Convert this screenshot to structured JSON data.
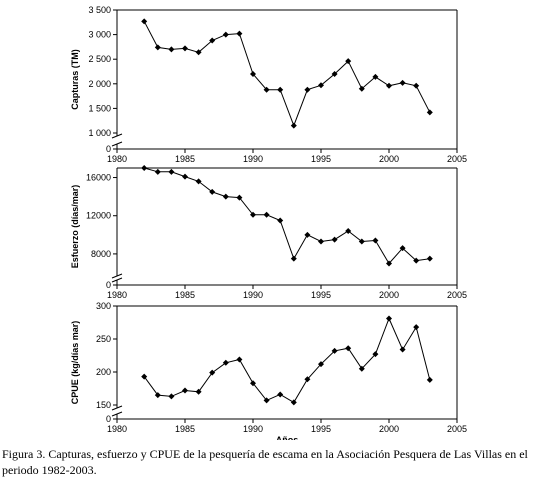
{
  "caption": "Figura 3. Capturas, esfuerzo y CPUE de la pesquería de escama en la Asociación Pesquera de Las Villas en el periodo 1982-2003.",
  "chart_data": [
    {
      "type": "line",
      "ylabel": "Capturas (TM)",
      "xlabel": "",
      "xlim": [
        1980,
        2005
      ],
      "xticks": [
        1980,
        1985,
        1990,
        1995,
        2000,
        2005
      ],
      "ylim": [
        1000,
        3500
      ],
      "yticks": [
        1000,
        1500,
        2000,
        2500,
        3000,
        3500
      ],
      "ytick_labels": [
        "1 000",
        "1 500",
        "2 000",
        "2 500",
        "3 000",
        "3 500"
      ],
      "axis_break": true,
      "zero_label": "0",
      "x": [
        1982,
        1983,
        1984,
        1985,
        1986,
        1987,
        1988,
        1989,
        1990,
        1991,
        1992,
        1993,
        1994,
        1995,
        1996,
        1997,
        1998,
        1999,
        2000,
        2001,
        2002,
        2003
      ],
      "values": [
        3270,
        2740,
        2700,
        2720,
        2640,
        2880,
        3000,
        3020,
        2200,
        1880,
        1880,
        1150,
        1880,
        1970,
        2200,
        2460,
        1900,
        2140,
        1960,
        2020,
        1960,
        1420
      ]
    },
    {
      "type": "line",
      "ylabel": "Esfuerzo (días/mar)",
      "xlabel": "",
      "xlim": [
        1980,
        2005
      ],
      "xticks": [
        1980,
        1985,
        1990,
        1995,
        2000,
        2005
      ],
      "ylim": [
        6000,
        17000
      ],
      "yticks": [
        8000,
        12000,
        16000
      ],
      "ytick_labels": [
        "8000",
        "12000",
        "16000"
      ],
      "axis_break": true,
      "zero_label": "0",
      "x": [
        1982,
        1983,
        1984,
        1985,
        1986,
        1987,
        1988,
        1989,
        1990,
        1991,
        1992,
        1993,
        1994,
        1995,
        1996,
        1997,
        1998,
        1999,
        2000,
        2001,
        2002,
        2003
      ],
      "values": [
        17000,
        16600,
        16600,
        16100,
        15600,
        14500,
        14000,
        13900,
        12100,
        12100,
        11500,
        7500,
        10000,
        9300,
        9500,
        10400,
        9300,
        9400,
        7000,
        8600,
        7300,
        7500
      ]
    },
    {
      "type": "line",
      "ylabel": "CPUE (kg/días mar)",
      "xlabel": "Años",
      "xlim": [
        1980,
        2005
      ],
      "xticks": [
        1980,
        1985,
        1990,
        1995,
        2000,
        2005
      ],
      "ylim": [
        150,
        300
      ],
      "yticks": [
        150,
        200,
        250,
        300
      ],
      "ytick_labels": [
        "150",
        "200",
        "250",
        "300"
      ],
      "axis_break": true,
      "zero_label": "0",
      "x": [
        1982,
        1983,
        1984,
        1985,
        1986,
        1987,
        1988,
        1989,
        1990,
        1991,
        1992,
        1993,
        1994,
        1995,
        1996,
        1997,
        1998,
        1999,
        2000,
        2001,
        2002,
        2003
      ],
      "values": [
        193,
        165,
        163,
        172,
        170,
        199,
        214,
        219,
        183,
        157,
        166,
        154,
        189,
        212,
        232,
        236,
        205,
        227,
        281,
        234,
        268,
        188
      ]
    }
  ]
}
